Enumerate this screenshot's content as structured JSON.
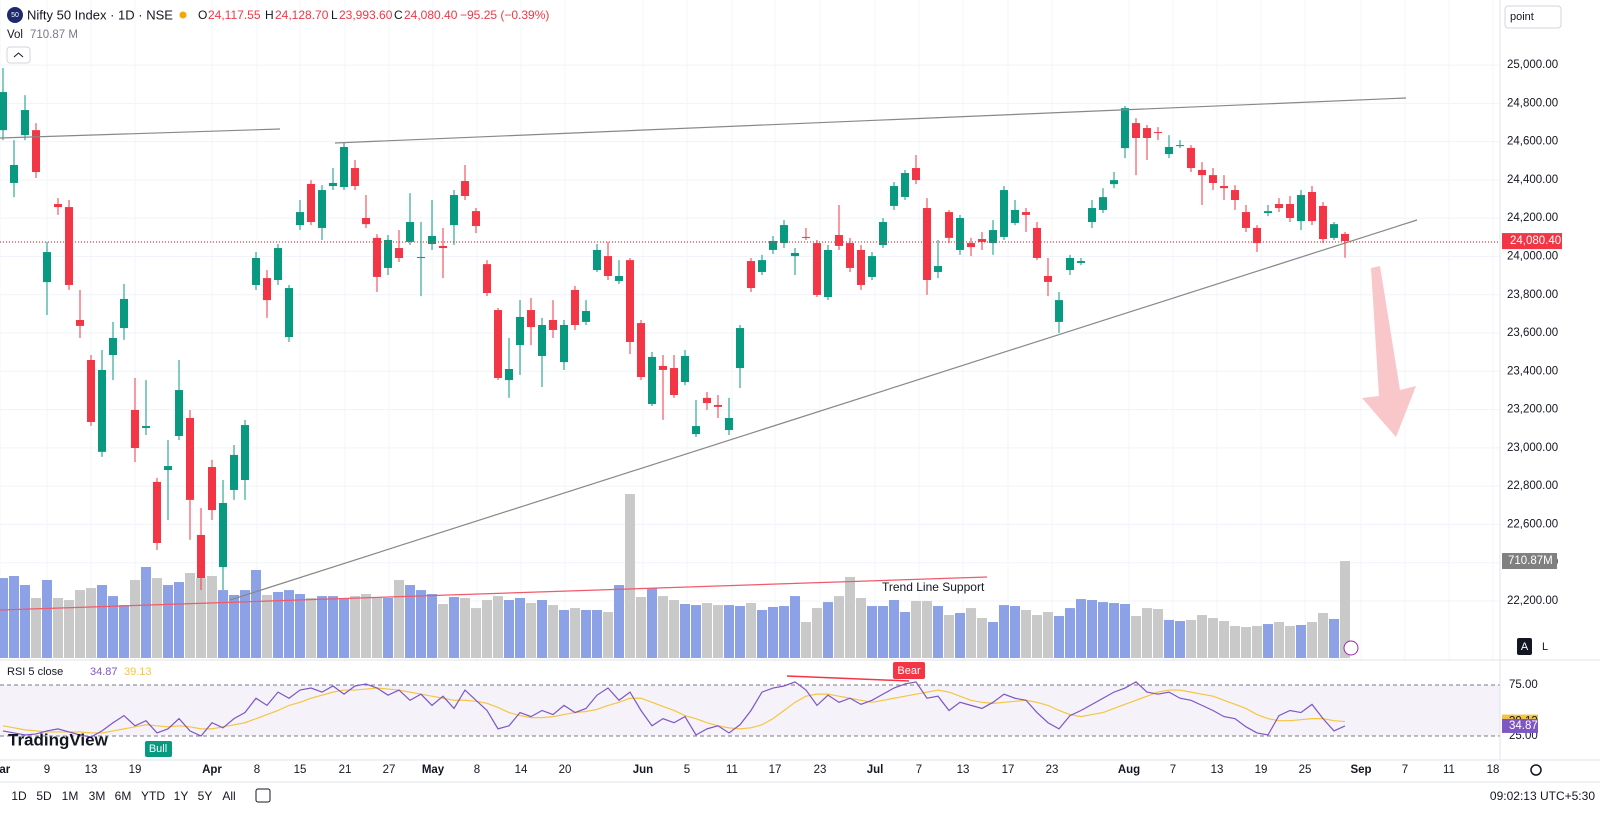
{
  "header": {
    "icon": "50",
    "symbol": "Nifty 50 Index · 1D · NSE",
    "o_label": "O",
    "open": "24,117.55",
    "h_label": "H",
    "high": "24,128.70",
    "l_label": "L",
    "low": "23,993.60",
    "c_label": "C",
    "close": "24,080.40",
    "change": "−95.25 (−0.39%)",
    "vol_label": "Vol",
    "vol_value": "710.87 M"
  },
  "toolbar": {
    "ranges": [
      "1D",
      "5D",
      "1M",
      "3M",
      "6M",
      "YTD",
      "1Y",
      "5Y",
      "All"
    ],
    "time": "09:02:13 UTC+5:30",
    "search": "point",
    "auto": "A",
    "log": "L"
  },
  "chart_data": {
    "type": "candlestick",
    "up_color": "#089981",
    "down_color": "#f23645",
    "vol_up_color": "#8da2e6",
    "vol_down_color": "#c9c9c9",
    "rsi_color": "#7e57c2",
    "rsi_ma_color": "#f5c542",
    "ylim": [
      21902,
      25340
    ],
    "yticks": [
      {
        "value": 25000,
        "label": "25,000.00"
      },
      {
        "value": 24800,
        "label": "24,800.00"
      },
      {
        "value": 24600,
        "label": "24,600.00"
      },
      {
        "value": 24400,
        "label": "24,400.00"
      },
      {
        "value": 24200,
        "label": "24,200.00"
      },
      {
        "value": 24000,
        "label": "24,000.00"
      },
      {
        "value": 23800,
        "label": "23,800.00"
      },
      {
        "value": 23600,
        "label": "23,600.00"
      },
      {
        "value": 23400,
        "label": "23,400.00"
      },
      {
        "value": 23200,
        "label": "23,200.00"
      },
      {
        "value": 23000,
        "label": "23,000.00"
      },
      {
        "value": 22800,
        "label": "22,800.00"
      },
      {
        "value": 22600,
        "label": "22,600.00"
      },
      {
        "value": 22400,
        "label": "22,400.00"
      },
      {
        "value": 22200,
        "label": "22,200.00"
      }
    ],
    "y2lim": [
      0,
      4823
    ],
    "rsi_lim": [
      1.5,
      97.5
    ],
    "rsi_ticks": [
      {
        "value": 75,
        "label": "75.00"
      },
      {
        "value": 25,
        "label": "25.00"
      }
    ],
    "rsi_title": "RSI 5 close",
    "last_price_label": "24,080.40",
    "last_volume_label": "710.87M",
    "annotations": {
      "support": "Trend Line Support",
      "bear": "Bear",
      "bull": "Bull",
      "logo": "TradingView"
    },
    "xlabels": [
      "Mar",
      "9",
      "13",
      "19",
      "Apr",
      "8",
      "15",
      "21",
      "27",
      "May",
      "8",
      "14",
      "20",
      "Jun",
      "5",
      "11",
      "17",
      "23",
      "Jul",
      "7",
      "13",
      "17",
      "23",
      "Aug",
      "7",
      "13",
      "19",
      "25",
      "Sep",
      "7",
      "11",
      "18"
    ],
    "ohlc": [
      [
        24660,
        24985,
        24608,
        24859
      ],
      [
        24384,
        24608,
        24310,
        24478
      ],
      [
        24634,
        24843,
        24608,
        24765
      ],
      [
        24660,
        24697,
        24410,
        24441
      ],
      [
        23866,
        24076,
        23694,
        24023
      ],
      [
        24274,
        24305,
        24217,
        24258
      ],
      [
        24258,
        24295,
        23825,
        23851
      ],
      [
        23668,
        23825,
        23574,
        23637
      ],
      [
        23459,
        23485,
        23115,
        23135
      ],
      [
        22979,
        23511,
        22953,
        23407
      ],
      [
        23485,
        23658,
        23354,
        23574
      ],
      [
        23626,
        23856,
        23564,
        23778
      ],
      [
        23198,
        23365,
        22926,
        22999
      ],
      [
        23104,
        23354,
        23067,
        23114
      ],
      [
        22822,
        22843,
        22466,
        22503
      ],
      [
        22884,
        23041,
        22623,
        22905
      ],
      [
        23062,
        23459,
        23041,
        23302
      ],
      [
        23156,
        23198,
        22519,
        22728
      ],
      [
        22545,
        22686,
        22257,
        22320
      ],
      [
        22900,
        22937,
        22623,
        22675
      ],
      [
        22377,
        22832,
        22257,
        22712
      ],
      [
        22780,
        23015,
        22728,
        22963
      ],
      [
        22832,
        23146,
        22728,
        23119
      ],
      [
        23851,
        24023,
        23825,
        23992
      ],
      [
        23887,
        23929,
        23679,
        23772
      ],
      [
        23877,
        24065,
        23851,
        24044
      ],
      [
        23579,
        23851,
        23553,
        23835
      ],
      [
        24164,
        24295,
        24138,
        24232
      ],
      [
        24379,
        24399,
        24164,
        24180
      ],
      [
        24149,
        24373,
        24086,
        24347
      ],
      [
        24368,
        24462,
        24347,
        24384
      ],
      [
        24363,
        24593,
        24347,
        24572
      ],
      [
        24462,
        24504,
        24347,
        24368
      ],
      [
        24201,
        24321,
        24149,
        24169
      ],
      [
        24097,
        24117,
        23814,
        23893
      ],
      [
        23940,
        24112,
        23903,
        24086
      ],
      [
        24044,
        24138,
        23971,
        23992
      ],
      [
        24076,
        24331,
        24060,
        24180
      ],
      [
        23992,
        24180,
        23793,
        23997
      ],
      [
        24065,
        24295,
        24034,
        24107
      ],
      [
        24055,
        24149,
        23887,
        24044
      ],
      [
        24164,
        24347,
        24060,
        24321
      ],
      [
        24394,
        24478,
        24295,
        24316
      ],
      [
        24237,
        24253,
        24122,
        24159
      ],
      [
        23960,
        23981,
        23793,
        23809
      ],
      [
        23720,
        23731,
        23354,
        23365
      ],
      [
        23354,
        23574,
        23261,
        23412
      ],
      [
        23537,
        23772,
        23381,
        23684
      ],
      [
        23720,
        23783,
        23537,
        23631
      ],
      [
        23480,
        23679,
        23318,
        23642
      ],
      [
        23668,
        23772,
        23574,
        23616
      ],
      [
        23448,
        23668,
        23407,
        23642
      ],
      [
        23825,
        23846,
        23616,
        23642
      ],
      [
        23658,
        23772,
        23642,
        23715
      ],
      [
        23929,
        24065,
        23919,
        24034
      ],
      [
        24002,
        24076,
        23877,
        23898
      ],
      [
        23872,
        23981,
        23856,
        23898
      ],
      [
        23981,
        23992,
        23490,
        23553
      ],
      [
        23652,
        23668,
        23354,
        23370
      ],
      [
        23229,
        23501,
        23219,
        23475
      ],
      [
        23428,
        23485,
        23146,
        23407
      ],
      [
        23417,
        23485,
        23261,
        23276
      ],
      [
        23344,
        23511,
        23328,
        23480
      ],
      [
        23072,
        23250,
        23057,
        23114
      ],
      [
        23261,
        23292,
        23198,
        23234
      ],
      [
        23224,
        23276,
        23156,
        23214
      ],
      [
        23093,
        23261,
        23067,
        23156
      ],
      [
        23417,
        23642,
        23313,
        23626
      ],
      [
        23976,
        23992,
        23814,
        23835
      ],
      [
        23919,
        24008,
        23903,
        23981
      ],
      [
        24034,
        24107,
        24013,
        24081
      ],
      [
        24070,
        24190,
        24044,
        24164
      ],
      [
        24002,
        24044,
        23903,
        24018
      ],
      [
        24102,
        24149,
        24086,
        24097
      ],
      [
        24070,
        24086,
        23788,
        23799
      ],
      [
        23788,
        24060,
        23772,
        24034
      ],
      [
        24112,
        24269,
        24034,
        24055
      ],
      [
        24070,
        24097,
        23919,
        23940
      ],
      [
        24034,
        24060,
        23825,
        23851
      ],
      [
        23893,
        24023,
        23877,
        24002
      ],
      [
        24060,
        24201,
        24044,
        24180
      ],
      [
        24264,
        24389,
        24243,
        24368
      ],
      [
        24311,
        24452,
        24295,
        24436
      ],
      [
        24462,
        24530,
        24378,
        24399
      ],
      [
        24253,
        24305,
        23799,
        23877
      ],
      [
        23919,
        24086,
        23887,
        23950
      ],
      [
        24232,
        24243,
        24070,
        24097
      ],
      [
        24034,
        24217,
        24008,
        24201
      ],
      [
        24070,
        24097,
        24002,
        24049
      ],
      [
        24091,
        24128,
        24034,
        24076
      ],
      [
        24070,
        24190,
        24008,
        24138
      ],
      [
        24102,
        24368,
        24086,
        24347
      ],
      [
        24175,
        24295,
        24164,
        24243
      ],
      [
        24232,
        24253,
        24128,
        24217
      ],
      [
        24149,
        24180,
        23981,
        23992
      ],
      [
        23898,
        23992,
        23793,
        23867
      ],
      [
        23658,
        23814,
        23600,
        23772
      ],
      [
        23929,
        24008,
        23903,
        23992
      ],
      [
        23966,
        23992,
        23955,
        23976
      ],
      [
        24180,
        24295,
        24149,
        24253
      ],
      [
        24243,
        24357,
        24227,
        24310
      ],
      [
        24378,
        24441,
        24357,
        24399
      ],
      [
        24566,
        24786,
        24514,
        24775
      ],
      [
        24697,
        24723,
        24425,
        24619
      ],
      [
        24671,
        24687,
        24504,
        24619
      ],
      [
        24650,
        24676,
        24608,
        24645
      ],
      [
        24535,
        24634,
        24514,
        24572
      ],
      [
        24577,
        24608,
        24567,
        24582
      ],
      [
        24567,
        24582,
        24441,
        24462
      ],
      [
        24452,
        24493,
        24269,
        24425
      ],
      [
        24425,
        24462,
        24347,
        24384
      ],
      [
        24368,
        24425,
        24295,
        24357
      ],
      [
        24347,
        24373,
        24243,
        24295
      ],
      [
        24232,
        24269,
        24128,
        24149
      ],
      [
        24149,
        24164,
        24023,
        24070
      ],
      [
        24227,
        24269,
        24211,
        24237
      ],
      [
        24274,
        24305,
        24232,
        24253
      ],
      [
        24274,
        24316,
        24180,
        24201
      ],
      [
        24185,
        24347,
        24138,
        24321
      ],
      [
        24337,
        24368,
        24164,
        24185
      ],
      [
        24264,
        24284,
        24070,
        24091
      ],
      [
        24097,
        24180,
        24086,
        24169
      ],
      [
        24117.55,
        24128.7,
        23993.6,
        24080.4
      ]
    ],
    "volume": [
      586,
      601,
      535,
      440,
      572,
      440,
      425,
      498,
      513,
      535,
      454,
      388,
      572,
      667,
      586,
      535,
      557,
      623,
      586,
      601,
      498,
      462,
      498,
      645,
      462,
      484,
      498,
      469,
      440,
      454,
      454,
      440,
      454,
      469,
      440,
      440,
      572,
      535,
      498,
      469,
      396,
      447,
      440,
      366,
      425,
      454,
      425,
      440,
      403,
      425,
      388,
      352,
      366,
      352,
      352,
      337,
      535,
      1202,
      447,
      513,
      454,
      425,
      396,
      388,
      403,
      388,
      388,
      381,
      403,
      352,
      374,
      381,
      454,
      264,
      366,
      410,
      454,
      594,
      440,
      381,
      381,
      425,
      337,
      418,
      418,
      381,
      315,
      330,
      366,
      293,
      264,
      388,
      381,
      352,
      315,
      337,
      308,
      366,
      432,
      425,
      410,
      403,
      396,
      308,
      366,
      359,
      279,
      271,
      279,
      315,
      293,
      271,
      235,
      227,
      235,
      249,
      264,
      235,
      242,
      264,
      330,
      286,
      710.87
    ],
    "rsi": [
      30,
      28,
      26,
      27,
      30,
      32,
      29,
      26,
      24,
      30,
      38,
      45,
      35,
      40,
      28,
      32,
      42,
      30,
      25,
      38,
      33,
      42,
      48,
      62,
      55,
      68,
      62,
      70,
      72,
      68,
      74,
      66,
      74,
      76,
      72,
      65,
      70,
      60,
      66,
      55,
      64,
      52,
      70,
      60,
      50,
      32,
      35,
      48,
      44,
      50,
      46,
      55,
      48,
      52,
      65,
      72,
      60,
      68,
      50,
      35,
      42,
      38,
      44,
      26,
      32,
      35,
      28,
      36,
      50,
      68,
      72,
      74,
      78,
      70,
      55,
      65,
      58,
      62,
      56,
      60,
      66,
      72,
      76,
      78,
      62,
      64,
      50,
      58,
      55,
      52,
      58,
      66,
      62,
      60,
      48,
      38,
      32,
      45,
      50,
      56,
      62,
      68,
      72,
      78,
      68,
      66,
      68,
      62,
      60,
      55,
      50,
      44,
      42,
      34,
      28,
      26,
      45,
      50,
      48,
      56,
      42,
      30,
      34.87
    ],
    "rsi_ma": [
      35,
      33,
      31,
      30,
      29,
      29,
      29,
      29,
      28,
      28,
      30,
      32,
      34,
      36,
      35,
      34,
      35,
      34,
      32,
      32,
      34,
      36,
      38,
      42,
      46,
      50,
      55,
      58,
      62,
      65,
      68,
      70,
      70,
      71,
      72,
      71,
      70,
      68,
      66,
      64,
      62,
      60,
      60,
      59,
      57,
      53,
      48,
      45,
      43,
      43,
      44,
      46,
      48,
      49,
      51,
      55,
      58,
      62,
      62,
      58,
      54,
      50,
      45,
      42,
      38,
      35,
      33,
      32,
      33,
      36,
      42,
      50,
      58,
      64,
      66,
      66,
      64,
      62,
      60,
      58,
      60,
      62,
      64,
      66,
      68,
      70,
      68,
      64,
      60,
      58,
      57,
      58,
      59,
      60,
      58,
      55,
      50,
      46,
      44,
      46,
      48,
      52,
      56,
      60,
      64,
      68,
      70,
      70,
      68,
      66,
      64,
      60,
      56,
      52,
      46,
      42,
      40,
      40,
      41,
      42,
      42,
      40,
      39.13
    ]
  }
}
